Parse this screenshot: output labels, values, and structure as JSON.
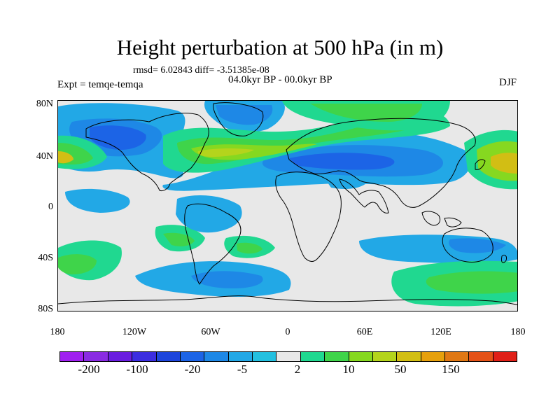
{
  "title": "Height perturbation at 500 hPa (in m)",
  "stats": "rmsd= 6.02843 diff= -3.51385e-08",
  "left_label": "Expt = temqe-temqa",
  "center_label": "04.0kyr BP - 00.0kyr BP",
  "right_label": "DJF",
  "lat_ticks": [
    "80N",
    "40N",
    "0",
    "40S",
    "80S"
  ],
  "lon_ticks": [
    "180",
    "120W",
    "60W",
    "0",
    "60E",
    "120E",
    "180"
  ],
  "colorbar": {
    "colors": [
      "#a020f0",
      "#8a2be2",
      "#6a1ee0",
      "#3c2ee0",
      "#1e46dc",
      "#1c64e6",
      "#1e88e6",
      "#22a8e6",
      "#23c0e0",
      "#e8e8e8",
      "#20d890",
      "#3fd44a",
      "#86d820",
      "#b4d41c",
      "#d2be14",
      "#e6a00c",
      "#e07814",
      "#e45218",
      "#e02018"
    ],
    "labels": [
      "-200",
      "-100",
      "-20",
      "-5",
      "2",
      "10",
      "50",
      "150"
    ]
  },
  "colors": {
    "land_outline": "#000000",
    "background": "#e8e8e8"
  }
}
